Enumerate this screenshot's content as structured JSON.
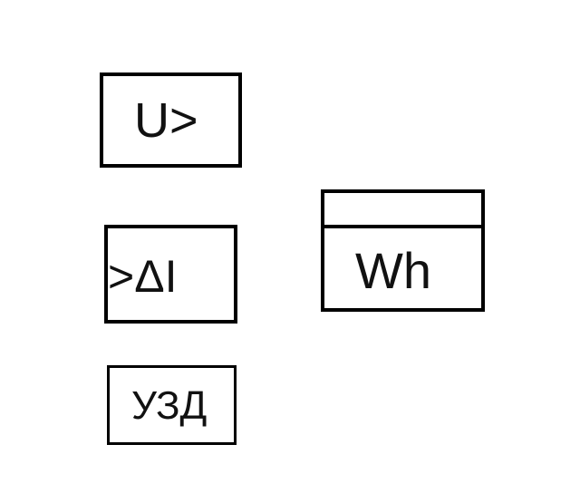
{
  "symbols": {
    "overvoltage_relay": {
      "label": "U>"
    },
    "differential_relay": {
      "label": ">ΔI"
    },
    "protection_device": {
      "label": "УЗД"
    },
    "energy_meter": {
      "label": "Wh"
    }
  },
  "colors": {
    "stroke": "#000000",
    "text": "#111111",
    "background": "#ffffff"
  }
}
